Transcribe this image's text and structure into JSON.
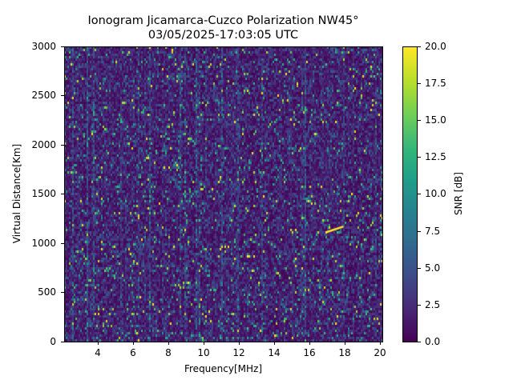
{
  "chart_data": {
    "type": "heatmap",
    "title": "Ionogram Jicamarca-Cuzco Polarization NW45°",
    "subtitle": "03/05/2025-17:03:05 UTC",
    "xlabel": "Frequency[MHz]",
    "ylabel": "Virtual Distance[Km]",
    "xlim": [
      2.2,
      20.2
    ],
    "ylim": [
      0,
      3000
    ],
    "x_ticks": [
      4,
      6,
      8,
      10,
      12,
      14,
      16,
      18,
      20
    ],
    "y_ticks": [
      0,
      500,
      1000,
      1500,
      2000,
      2500,
      3000
    ],
    "colorbar": {
      "label": "SNR [dB]",
      "colormap": "viridis",
      "range": [
        0.0,
        20.0
      ],
      "ticks": [
        "0.0",
        "2.5",
        "5.0",
        "7.5",
        "10.0",
        "12.5",
        "15.0",
        "17.5",
        "20.0"
      ]
    },
    "features": [
      {
        "description": "Oblique echo trace (high SNR ~20 dB)",
        "start": {
          "freq_mhz": 17.0,
          "distance_km": 1110
        },
        "end": {
          "freq_mhz": 18.0,
          "distance_km": 1170
        }
      }
    ],
    "background": "Noise-dominated SNR field mostly 0-5 dB with sparse bright pixels, vertical streaks at interference frequencies",
    "grid": false
  },
  "labels": {
    "title": "Ionogram Jicamarca-Cuzco Polarization NW45°",
    "subtitle": "03/05/2025-17:03:05 UTC",
    "xlabel": "Frequency[MHz]",
    "ylabel": "Virtual Distance[Km]",
    "clabel": "SNR [dB]",
    "xticks": [
      "4",
      "6",
      "8",
      "10",
      "12",
      "14",
      "16",
      "18",
      "20"
    ],
    "yticks": [
      "0",
      "500",
      "1000",
      "1500",
      "2000",
      "2500",
      "3000"
    ],
    "cticks": [
      "0.0",
      "2.5",
      "5.0",
      "7.5",
      "10.0",
      "12.5",
      "15.0",
      "17.5",
      "20.0"
    ]
  }
}
